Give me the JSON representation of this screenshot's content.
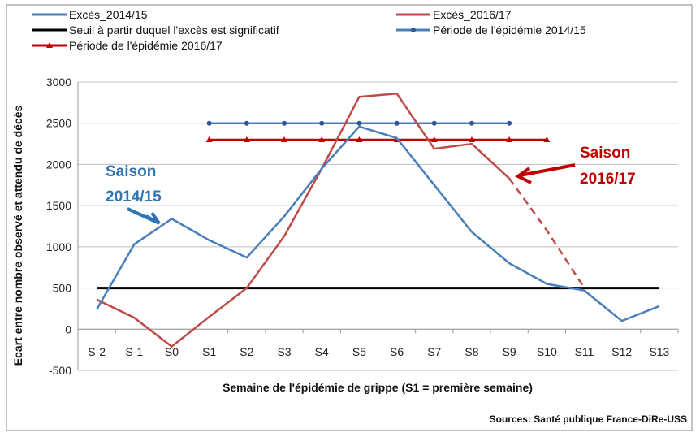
{
  "chart_data": {
    "type": "line",
    "xlabel": "Semaine de l'épidémie de grippe (S1 = première semaine)",
    "ylabel": "Ecart entre nombre observé et attendu de décès",
    "ylim": [
      -500,
      3000
    ],
    "yticks": [
      "3000",
      "2500",
      "2000",
      "1500",
      "1000",
      "500",
      "0",
      "-500"
    ],
    "ytick_values": [
      3000,
      2500,
      2000,
      1500,
      1000,
      500,
      0,
      -500
    ],
    "categories": [
      "S-2",
      "S-1",
      "S0",
      "S1",
      "S2",
      "S3",
      "S4",
      "S5",
      "S6",
      "S7",
      "S8",
      "S9",
      "S10",
      "S11",
      "S12",
      "S13"
    ],
    "grid": true,
    "legend_placement": "top",
    "series": [
      {
        "name": "Excès_2014/15",
        "color": "#4a7ebb",
        "values": [
          240,
          1030,
          1340,
          1080,
          870,
          1370,
          1950,
          2460,
          2320,
          1750,
          1180,
          800,
          550,
          470,
          100,
          280
        ]
      },
      {
        "name": "Excès_2016/17",
        "color": "#be4b48",
        "values": [
          360,
          140,
          -210,
          150,
          500,
          1130,
          1950,
          2820,
          2860,
          2190,
          2250,
          1830,
          null,
          null,
          null,
          null
        ],
        "dashed_values": [
          null,
          null,
          null,
          null,
          null,
          null,
          null,
          null,
          null,
          null,
          null,
          1830,
          1200,
          500,
          null,
          null
        ]
      },
      {
        "name": "Seuil à partir duquel l'excès est significatif",
        "color": "#000000",
        "values": [
          500,
          500,
          500,
          500,
          500,
          500,
          500,
          500,
          500,
          500,
          500,
          500,
          500,
          500,
          500,
          500
        ]
      },
      {
        "name": "Période de l'épidémie 2014/15",
        "color": "#4a7ebb",
        "marker": "dot",
        "values": [
          null,
          null,
          null,
          2500,
          2500,
          2500,
          2500,
          2500,
          2500,
          2500,
          2500,
          2500,
          null,
          null,
          null,
          null
        ]
      },
      {
        "name": "Période de l'épidémie 2016/17",
        "color": "#c00000",
        "marker": "triangle",
        "values": [
          null,
          null,
          null,
          2300,
          2300,
          2300,
          2300,
          2300,
          2300,
          2300,
          2300,
          2300,
          2300,
          null,
          null,
          null
        ]
      }
    ],
    "annotations": [
      {
        "lines": [
          "Saison",
          "2014/15"
        ],
        "color": "#2e75b6"
      },
      {
        "lines": [
          "Saison",
          "2016/17"
        ],
        "color": "#c00000"
      }
    ],
    "source": "Sources: Santé publique France-DiRe-USS"
  }
}
